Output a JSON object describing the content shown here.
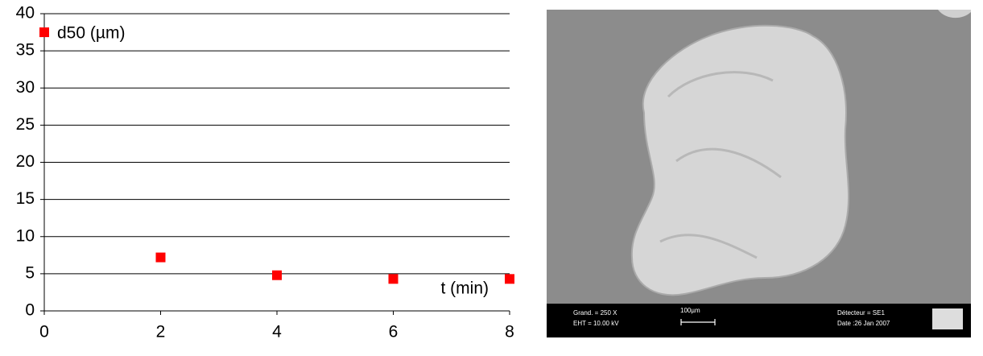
{
  "chart_data": {
    "type": "scatter",
    "ylabel": "d50 (µm)",
    "xlabel": "t (min)",
    "x": [
      0,
      2,
      4,
      6,
      8
    ],
    "values": [
      37.5,
      7.2,
      4.8,
      4.3,
      4.3
    ],
    "color": "#ff0000",
    "xlim": [
      0,
      8
    ],
    "xticks": [
      0,
      2,
      4,
      6,
      8
    ],
    "ylim": [
      0,
      40
    ],
    "yticks": [
      0,
      5,
      10,
      15,
      20,
      25,
      30,
      35,
      40
    ],
    "grid": true
  },
  "micrograph": {
    "magnification": "Grand. =   250 X",
    "voltage": "EHT = 10.00 kV",
    "scale": "100µm",
    "detector": "Détecteur = SE1",
    "date": "Date :26 Jan 2007"
  }
}
